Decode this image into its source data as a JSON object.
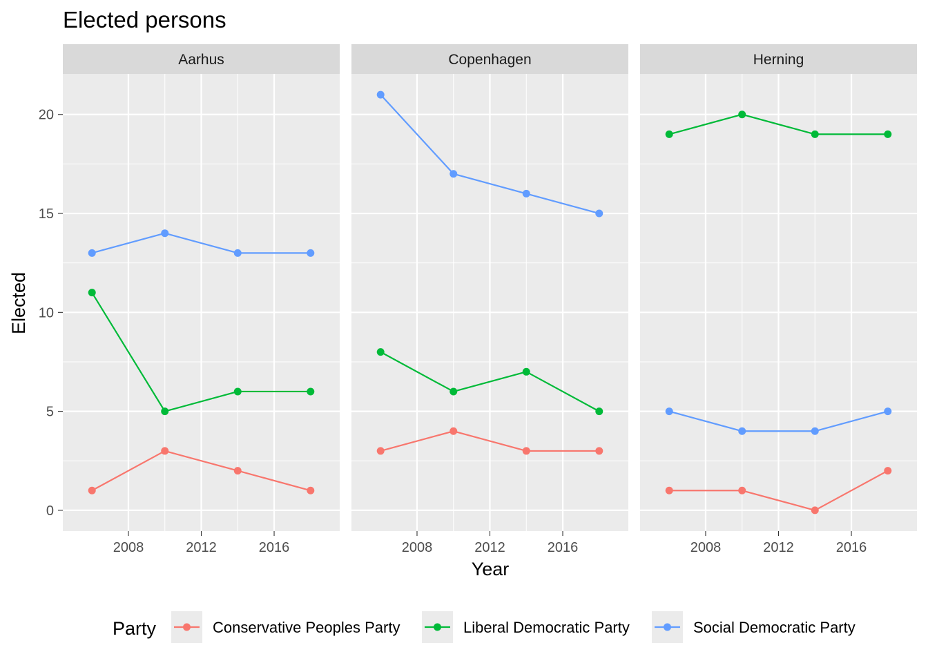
{
  "chart_data": {
    "type": "line",
    "title": "Elected persons",
    "xlabel": "Year",
    "ylabel": "Elected",
    "xlim": [
      2004.4,
      2019.6
    ],
    "ylim": [
      -1.05,
      22.05
    ],
    "x_ticks": [
      2008,
      2012,
      2016
    ],
    "y_ticks": [
      0,
      5,
      10,
      15,
      20
    ],
    "grid": true,
    "legend_position": "bottom",
    "legend_title": "Party",
    "facets": [
      {
        "name": "Aarhus",
        "series": [
          {
            "name": "Conservative Peoples Party",
            "color": "#F8766D",
            "x": [
              2006,
              2010,
              2014,
              2018
            ],
            "y": [
              1,
              3,
              2,
              1
            ]
          },
          {
            "name": "Liberal Democratic Party",
            "color": "#00BA38",
            "x": [
              2006,
              2010,
              2014,
              2018
            ],
            "y": [
              11,
              5,
              6,
              6
            ]
          },
          {
            "name": "Social Democratic Party",
            "color": "#619CFF",
            "x": [
              2006,
              2010,
              2014,
              2018
            ],
            "y": [
              13,
              14,
              13,
              13
            ]
          }
        ]
      },
      {
        "name": "Copenhagen",
        "series": [
          {
            "name": "Conservative Peoples Party",
            "color": "#F8766D",
            "x": [
              2006,
              2010,
              2014,
              2018
            ],
            "y": [
              3,
              4,
              3,
              3
            ]
          },
          {
            "name": "Liberal Democratic Party",
            "color": "#00BA38",
            "x": [
              2006,
              2010,
              2014,
              2018
            ],
            "y": [
              8,
              6,
              7,
              5
            ]
          },
          {
            "name": "Social Democratic Party",
            "color": "#619CFF",
            "x": [
              2006,
              2010,
              2014,
              2018
            ],
            "y": [
              21,
              17,
              16,
              15
            ]
          }
        ]
      },
      {
        "name": "Herning",
        "series": [
          {
            "name": "Conservative Peoples Party",
            "color": "#F8766D",
            "x": [
              2006,
              2010,
              2014,
              2018
            ],
            "y": [
              1,
              1,
              0,
              2
            ]
          },
          {
            "name": "Liberal Democratic Party",
            "color": "#00BA38",
            "x": [
              2006,
              2010,
              2014,
              2018
            ],
            "y": [
              19,
              20,
              19,
              19
            ]
          },
          {
            "name": "Social Democratic Party",
            "color": "#619CFF",
            "x": [
              2006,
              2010,
              2014,
              2018
            ],
            "y": [
              5,
              4,
              4,
              5
            ]
          }
        ]
      }
    ]
  }
}
